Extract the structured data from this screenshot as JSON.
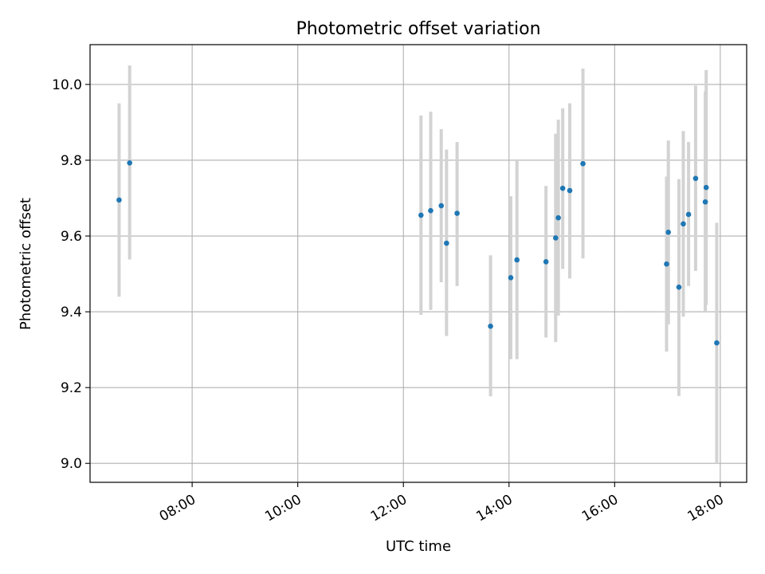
{
  "chart_data": {
    "type": "scatter",
    "title": "Photometric offset variation",
    "xlabel": "UTC time",
    "ylabel": "Photometric offset",
    "x_axis": "time",
    "xlim": [
      "06:04",
      "18:30"
    ],
    "ylim": [
      8.95,
      10.105
    ],
    "x_ticks": [
      "08:00",
      "10:00",
      "12:00",
      "14:00",
      "16:00",
      "18:00"
    ],
    "y_ticks": [
      "9.0",
      "9.2",
      "9.4",
      "9.6",
      "9.8",
      "10.0"
    ],
    "grid": true,
    "colors": {
      "marker": "#1f77b4",
      "errorbar": "#d3d3d3",
      "grid": "#b0b0b0"
    },
    "series": [
      {
        "points": [
          {
            "x": "06:37",
            "y": 9.695,
            "err_low": 9.44,
            "err_high": 9.95
          },
          {
            "x": "06:49",
            "y": 9.793,
            "err_low": 9.538,
            "err_high": 10.05
          },
          {
            "x": "12:20",
            "y": 9.655,
            "err_low": 9.392,
            "err_high": 9.918
          },
          {
            "x": "12:31",
            "y": 9.667,
            "err_low": 9.405,
            "err_high": 9.928
          },
          {
            "x": "12:43",
            "y": 9.68,
            "err_low": 9.478,
            "err_high": 9.882
          },
          {
            "x": "12:49",
            "y": 9.581,
            "err_low": 9.336,
            "err_high": 9.828
          },
          {
            "x": "13:01",
            "y": 9.66,
            "err_low": 9.468,
            "err_high": 9.848
          },
          {
            "x": "13:39",
            "y": 9.362,
            "err_low": 9.177,
            "err_high": 9.549
          },
          {
            "x": "14:02",
            "y": 9.49,
            "err_low": 9.275,
            "err_high": 9.705
          },
          {
            "x": "14:09",
            "y": 9.537,
            "err_low": 9.275,
            "err_high": 9.798
          },
          {
            "x": "14:42",
            "y": 9.532,
            "err_low": 9.332,
            "err_high": 9.732
          },
          {
            "x": "14:53",
            "y": 9.595,
            "err_low": 9.32,
            "err_high": 9.87
          },
          {
            "x": "14:56",
            "y": 9.648,
            "err_low": 9.39,
            "err_high": 9.907
          },
          {
            "x": "15:01",
            "y": 9.726,
            "err_low": 9.513,
            "err_high": 9.937
          },
          {
            "x": "15:09",
            "y": 9.72,
            "err_low": 9.488,
            "err_high": 9.95
          },
          {
            "x": "15:24",
            "y": 9.791,
            "err_low": 9.541,
            "err_high": 10.042
          },
          {
            "x": "16:59",
            "y": 9.526,
            "err_low": 9.295,
            "err_high": 9.757
          },
          {
            "x": "17:01",
            "y": 9.61,
            "err_low": 9.367,
            "err_high": 9.852
          },
          {
            "x": "17:13",
            "y": 9.465,
            "err_low": 9.178,
            "err_high": 9.75
          },
          {
            "x": "17:18",
            "y": 9.632,
            "err_low": 9.387,
            "err_high": 9.877
          },
          {
            "x": "17:24",
            "y": 9.657,
            "err_low": 9.468,
            "err_high": 9.848
          },
          {
            "x": "17:32",
            "y": 9.752,
            "err_low": 9.508,
            "err_high": 9.997
          },
          {
            "x": "17:43",
            "y": 9.69,
            "err_low": 9.4,
            "err_high": 9.982
          },
          {
            "x": "17:44",
            "y": 9.728,
            "err_low": 9.418,
            "err_high": 10.038
          },
          {
            "x": "17:56",
            "y": 9.318,
            "err_low": 9.0,
            "err_high": 9.635
          }
        ]
      }
    ]
  }
}
